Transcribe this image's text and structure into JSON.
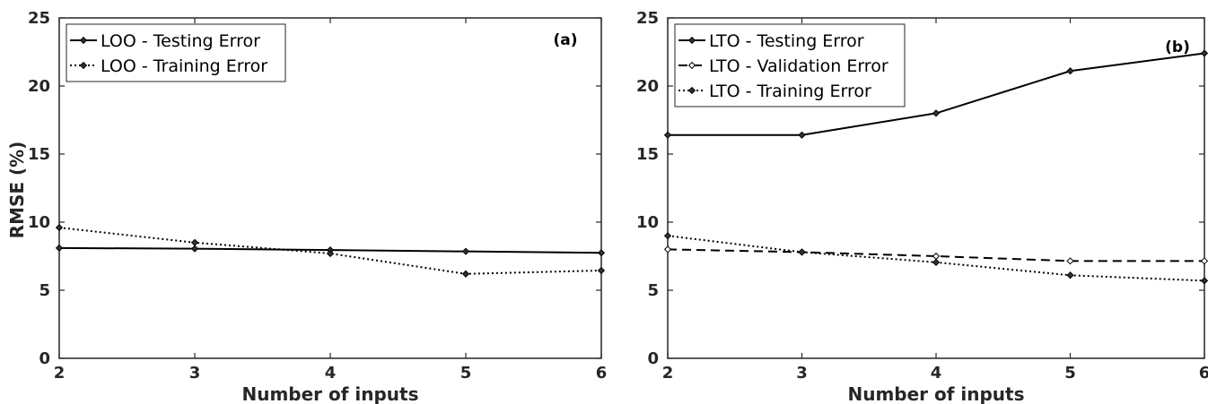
{
  "chart_data": [
    {
      "type": "line",
      "panel_label": "(a)",
      "xlabel": "Number of inputs",
      "ylabel": "RMSE (%)",
      "x": [
        2,
        3,
        4,
        5,
        6
      ],
      "xlim": [
        2,
        6
      ],
      "ylim": [
        0,
        25
      ],
      "xticks": [
        "2",
        "3",
        "4",
        "5",
        "6"
      ],
      "yticks": [
        "0",
        "5",
        "10",
        "15",
        "20",
        "25"
      ],
      "grid": false,
      "legend_position": "top-left",
      "series": [
        {
          "name": "LOO - Testing Error",
          "style": "solid",
          "values": [
            8.1,
            8.05,
            7.95,
            7.85,
            7.75
          ]
        },
        {
          "name": "LOO - Training Error",
          "style": "dotted",
          "values": [
            9.6,
            8.5,
            7.7,
            6.2,
            6.45
          ]
        }
      ]
    },
    {
      "type": "line",
      "panel_label": "(b)",
      "xlabel": "Number of inputs",
      "ylabel": "",
      "x": [
        2,
        3,
        4,
        5,
        6
      ],
      "xlim": [
        2,
        6
      ],
      "ylim": [
        0,
        25
      ],
      "xticks": [
        "2",
        "3",
        "4",
        "5",
        "6"
      ],
      "yticks": [
        "0",
        "5",
        "10",
        "15",
        "20",
        "25"
      ],
      "grid": false,
      "legend_position": "top-left",
      "series": [
        {
          "name": "LTO - Testing Error",
          "style": "solid",
          "values": [
            16.4,
            16.4,
            18.0,
            21.1,
            22.4
          ]
        },
        {
          "name": "LTO - Validation Error",
          "style": "dashed",
          "values": [
            8.0,
            7.8,
            7.5,
            7.15,
            7.15
          ]
        },
        {
          "name": "LTO - Training Error",
          "style": "dotted",
          "values": [
            9.0,
            7.8,
            7.05,
            6.1,
            5.7
          ]
        }
      ]
    }
  ],
  "colors": {
    "line": "#000000",
    "marker": "#333333",
    "axis": "#262626"
  }
}
